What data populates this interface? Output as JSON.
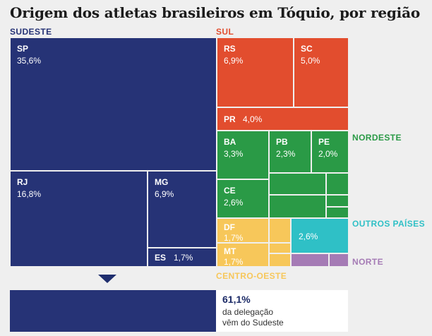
{
  "title": "Origem dos atletas brasileiros em Tóquio, por região",
  "colors": {
    "sudeste": "#263376",
    "sul": "#e24d2e",
    "nordeste": "#2a9a46",
    "outros_paises": "#2fc0c6",
    "norte": "#a57bb5",
    "centro_oeste": "#f7c75a"
  },
  "chart_data": {
    "type": "treemap",
    "title": "Origem dos atletas brasileiros em Tóquio, por região",
    "unit": "%",
    "groups": [
      {
        "name": "SUDESTE",
        "items": [
          {
            "code": "SP",
            "label": "35,6%",
            "value": 35.6
          },
          {
            "code": "RJ",
            "label": "16,8%",
            "value": 16.8
          },
          {
            "code": "MG",
            "label": "6,9%",
            "value": 6.9
          },
          {
            "code": "ES",
            "label": "1,7%",
            "value": 1.7
          }
        ]
      },
      {
        "name": "SUL",
        "items": [
          {
            "code": "RS",
            "label": "6,9%",
            "value": 6.9
          },
          {
            "code": "SC",
            "label": "5,0%",
            "value": 5.0
          },
          {
            "code": "PR",
            "label": "4,0%",
            "value": 4.0
          }
        ]
      },
      {
        "name": "NORDESTE",
        "items": [
          {
            "code": "BA",
            "label": "3,3%",
            "value": 3.3
          },
          {
            "code": "PB",
            "label": "2,3%",
            "value": 2.3
          },
          {
            "code": "PE",
            "label": "2,0%",
            "value": 2.0
          },
          {
            "code": "CE",
            "label": "2,6%",
            "value": 2.6
          }
        ]
      },
      {
        "name": "CENTRO-OESTE",
        "items": [
          {
            "code": "DF",
            "label": "1,7%",
            "value": 1.7
          },
          {
            "code": "MT",
            "label": "1,7%",
            "value": 1.7
          }
        ]
      },
      {
        "name": "OUTROS PAÍSES",
        "items": [
          {
            "code": "",
            "label": "2,6%",
            "value": 2.6
          }
        ]
      },
      {
        "name": "NORTE",
        "items": []
      }
    ]
  },
  "summary": {
    "value": "61,1%",
    "line1": "da delegação",
    "line2": "vêm do Sudeste"
  }
}
